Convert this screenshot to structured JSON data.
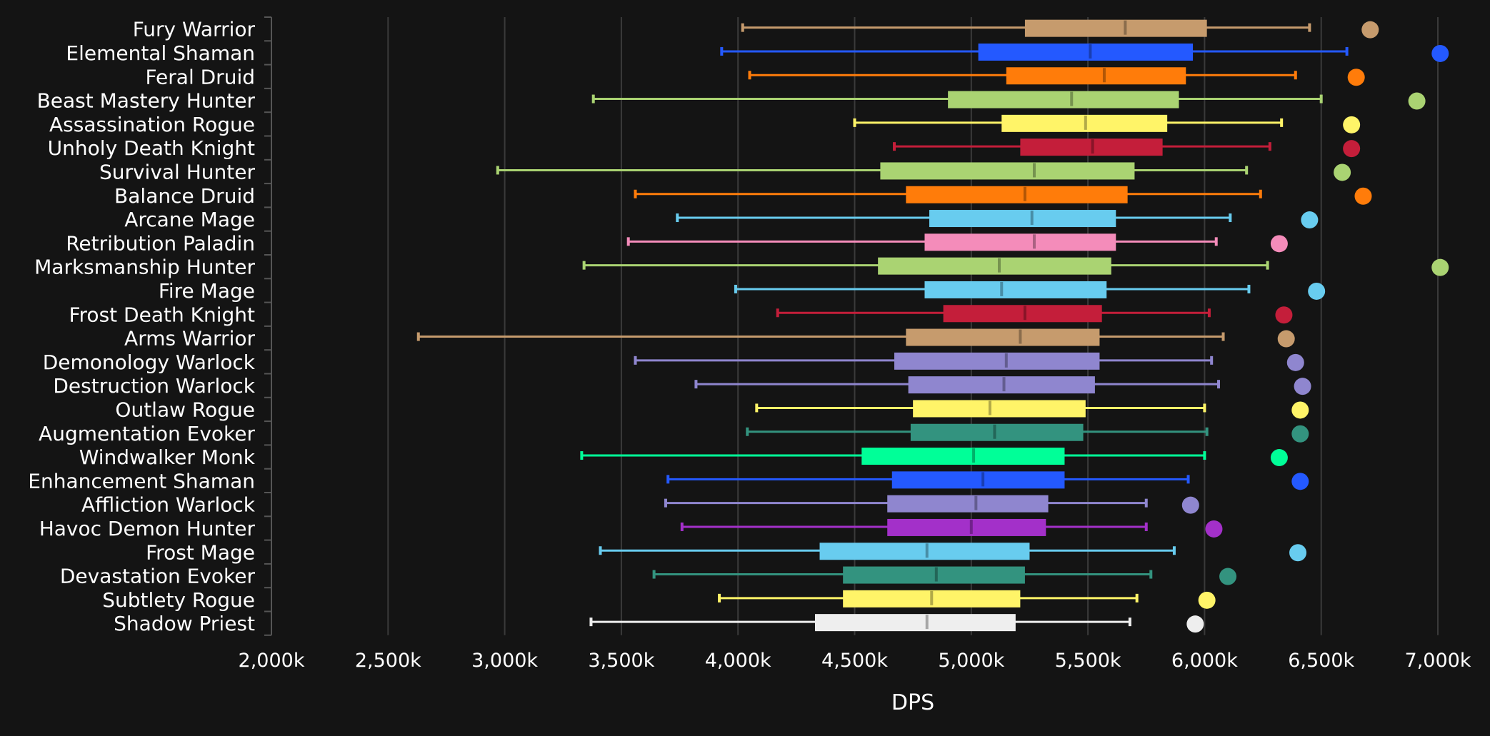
{
  "chart_data": {
    "type": "boxplot",
    "orientation": "horizontal",
    "xlabel": "DPS",
    "ylabel": "",
    "title": "",
    "xlim": [
      2000,
      7000
    ],
    "x_unit_suffix": "k",
    "x_ticks": [
      "2,000k",
      "2,500k",
      "3,000k",
      "3,500k",
      "4,000k",
      "4,500k",
      "5,000k",
      "5,500k",
      "6,000k",
      "6,500k",
      "7,000k"
    ],
    "x_tick_values": [
      2000,
      2500,
      3000,
      3500,
      4000,
      4500,
      5000,
      5500,
      6000,
      6500,
      7000
    ],
    "grid": "vertical",
    "background": "#141414",
    "series": [
      {
        "name": "Fury Warrior",
        "min": 4020,
        "q1": 5230,
        "median": 5660,
        "q3": 6010,
        "max": 6450,
        "outlier": 6710,
        "color": "#C69B6D"
      },
      {
        "name": "Elemental Shaman",
        "min": 3930,
        "q1": 5030,
        "median": 5510,
        "q3": 5950,
        "max": 6610,
        "outlier": 7010,
        "color": "#2459FF"
      },
      {
        "name": "Feral Druid",
        "min": 4050,
        "q1": 5150,
        "median": 5570,
        "q3": 5920,
        "max": 6390,
        "outlier": 6650,
        "color": "#FF7C0A"
      },
      {
        "name": "Beast Mastery Hunter",
        "min": 3380,
        "q1": 4900,
        "median": 5430,
        "q3": 5890,
        "max": 6500,
        "outlier": 6910,
        "color": "#AAD372"
      },
      {
        "name": "Assassination Rogue",
        "min": 4500,
        "q1": 5130,
        "median": 5490,
        "q3": 5840,
        "max": 6330,
        "outlier": 6630,
        "color": "#FFF468"
      },
      {
        "name": "Unholy Death Knight",
        "min": 4670,
        "q1": 5210,
        "median": 5520,
        "q3": 5820,
        "max": 6280,
        "outlier": 6630,
        "color": "#C41E3A"
      },
      {
        "name": "Survival Hunter",
        "min": 2970,
        "q1": 4610,
        "median": 5270,
        "q3": 5700,
        "max": 6180,
        "outlier": 6590,
        "color": "#AAD372"
      },
      {
        "name": "Balance Druid",
        "min": 3560,
        "q1": 4720,
        "median": 5230,
        "q3": 5670,
        "max": 6240,
        "outlier": 6680,
        "color": "#FF7C0A"
      },
      {
        "name": "Arcane Mage",
        "min": 3740,
        "q1": 4820,
        "median": 5260,
        "q3": 5620,
        "max": 6110,
        "outlier": 6450,
        "color": "#68CCEF"
      },
      {
        "name": "Retribution Paladin",
        "min": 3530,
        "q1": 4800,
        "median": 5270,
        "q3": 5620,
        "max": 6050,
        "outlier": 6320,
        "color": "#F48CBA"
      },
      {
        "name": "Marksmanship Hunter",
        "min": 3340,
        "q1": 4600,
        "median": 5120,
        "q3": 5600,
        "max": 6270,
        "outlier": 7010,
        "color": "#AAD372"
      },
      {
        "name": "Fire Mage",
        "min": 3990,
        "q1": 4800,
        "median": 5130,
        "q3": 5580,
        "max": 6190,
        "outlier": 6480,
        "color": "#68CCEF"
      },
      {
        "name": "Frost Death Knight",
        "min": 4170,
        "q1": 4880,
        "median": 5230,
        "q3": 5560,
        "max": 6020,
        "outlier": 6340,
        "color": "#C41E3A"
      },
      {
        "name": "Arms Warrior",
        "min": 2630,
        "q1": 4720,
        "median": 5210,
        "q3": 5550,
        "max": 6080,
        "outlier": 6350,
        "color": "#C69B6D"
      },
      {
        "name": "Demonology Warlock",
        "min": 3560,
        "q1": 4670,
        "median": 5150,
        "q3": 5550,
        "max": 6030,
        "outlier": 6390,
        "color": "#8F86CF"
      },
      {
        "name": "Destruction Warlock",
        "min": 3820,
        "q1": 4730,
        "median": 5140,
        "q3": 5530,
        "max": 6060,
        "outlier": 6420,
        "color": "#8F86CF"
      },
      {
        "name": "Outlaw Rogue",
        "min": 4080,
        "q1": 4750,
        "median": 5080,
        "q3": 5490,
        "max": 6000,
        "outlier": 6410,
        "color": "#FFF468"
      },
      {
        "name": "Augmentation Evoker",
        "min": 4040,
        "q1": 4740,
        "median": 5100,
        "q3": 5480,
        "max": 6010,
        "outlier": 6410,
        "color": "#33937F"
      },
      {
        "name": "Windwalker Monk",
        "min": 3330,
        "q1": 4530,
        "median": 5010,
        "q3": 5400,
        "max": 6000,
        "outlier": 6320,
        "color": "#00FF98"
      },
      {
        "name": "Enhancement Shaman",
        "min": 3700,
        "q1": 4660,
        "median": 5050,
        "q3": 5400,
        "max": 5930,
        "outlier": 6410,
        "color": "#2459FF"
      },
      {
        "name": "Affliction Warlock",
        "min": 3690,
        "q1": 4640,
        "median": 5020,
        "q3": 5330,
        "max": 5750,
        "outlier": 5940,
        "color": "#8F86CF"
      },
      {
        "name": "Havoc Demon Hunter",
        "min": 3760,
        "q1": 4640,
        "median": 5000,
        "q3": 5320,
        "max": 5750,
        "outlier": 6040,
        "color": "#A330C9"
      },
      {
        "name": "Frost Mage",
        "min": 3410,
        "q1": 4350,
        "median": 4810,
        "q3": 5250,
        "max": 5870,
        "outlier": 6400,
        "color": "#68CCEF"
      },
      {
        "name": "Devastation Evoker",
        "min": 3640,
        "q1": 4450,
        "median": 4850,
        "q3": 5230,
        "max": 5770,
        "outlier": 6100,
        "color": "#33937F"
      },
      {
        "name": "Subtlety Rogue",
        "min": 3920,
        "q1": 4450,
        "median": 4830,
        "q3": 5210,
        "max": 5710,
        "outlier": 6010,
        "color": "#FFF468"
      },
      {
        "name": "Shadow Priest",
        "min": 3370,
        "q1": 4330,
        "median": 4810,
        "q3": 5190,
        "max": 5680,
        "outlier": 5960,
        "color": "#EEEEEE"
      }
    ]
  }
}
